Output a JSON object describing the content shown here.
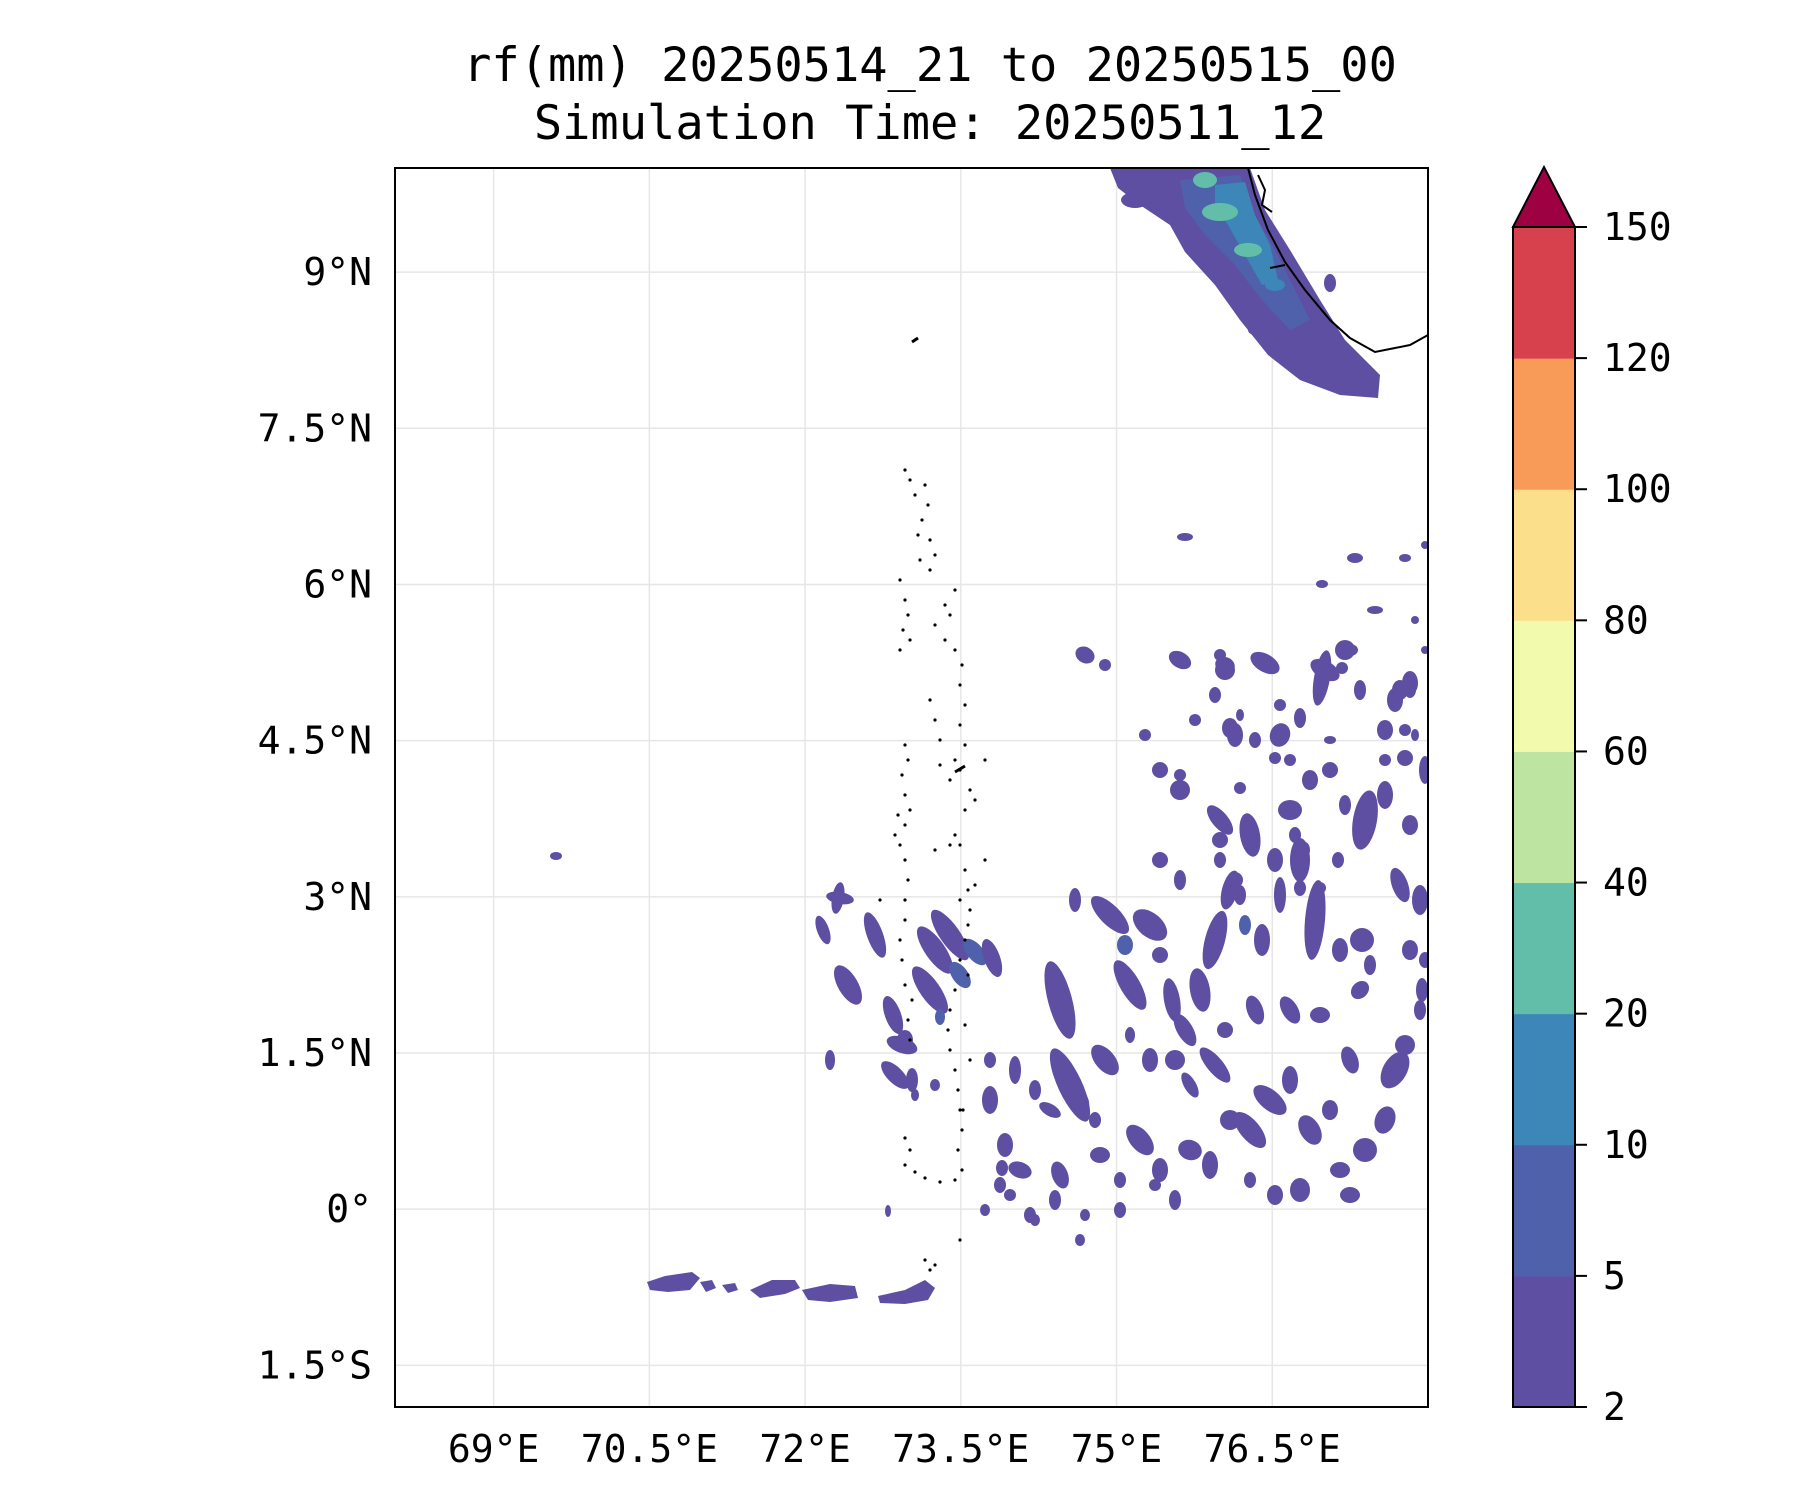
{
  "title": {
    "line1": "rf(mm) 20250514_21 to 20250515_00",
    "line2": "Simulation Time: 20250511_12"
  },
  "map": {
    "lat_ticks": [
      "9°N",
      "7.5°N",
      "6°N",
      "4.5°N",
      "3°N",
      "1.5°N",
      "0°",
      "1.5°S"
    ],
    "lon_ticks": [
      "69°E",
      "70.5°E",
      "72°E",
      "73.5°E",
      "75°E",
      "76.5°E"
    ],
    "lat_range": [
      -1.9,
      10.0
    ],
    "lon_range": [
      68.05,
      78.0
    ],
    "gridlines": true
  },
  "colorbar": {
    "levels": [
      "2",
      "5",
      "10",
      "20",
      "40",
      "60",
      "80",
      "100",
      "120",
      "150"
    ],
    "colors": [
      "#5e4fa2",
      "#4f61aa",
      "#3d86b8",
      "#63bea9",
      "#bde4a0",
      "#f2faae",
      "#fbdf8b",
      "#f99b58",
      "#d6414d",
      "#9e0142"
    ],
    "extend": "max"
  }
}
